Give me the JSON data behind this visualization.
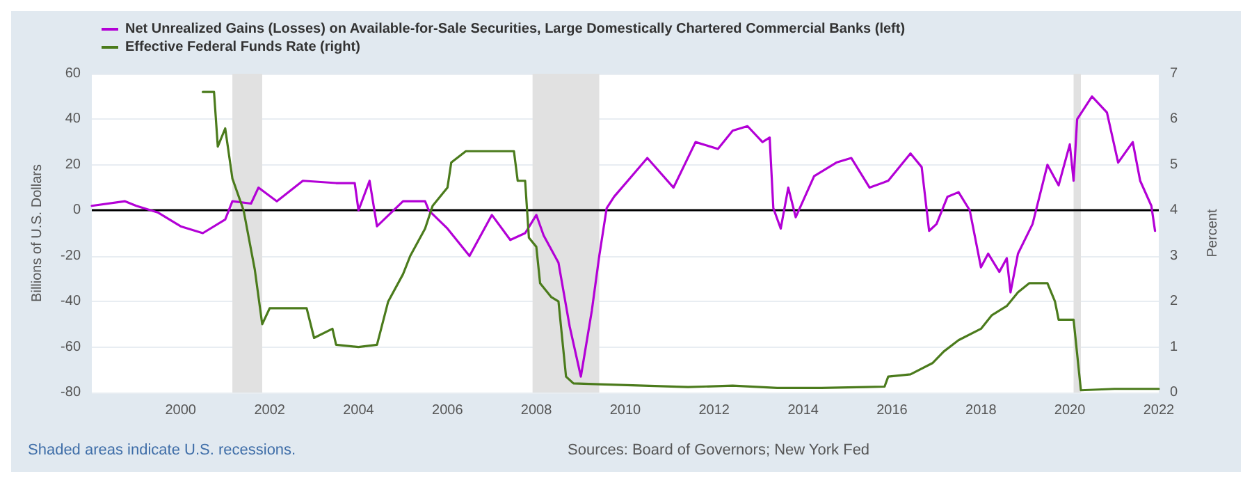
{
  "chart_data": {
    "type": "line",
    "legend": "top left",
    "grid": "y",
    "marker": "none",
    "line_style": "solid",
    "ylabel": "Billions of U.S. Dollars",
    "y2label": "Percent",
    "xlim": [
      "1998-01",
      "2022-01"
    ],
    "xticks": [
      "2000",
      "2002",
      "2004",
      "2006",
      "2008",
      "2010",
      "2012",
      "2014",
      "2016",
      "2018",
      "2020",
      "2022"
    ],
    "ylim": [
      -80,
      60
    ],
    "yticks": [
      -80,
      -60,
      -40,
      -20,
      0,
      20,
      40,
      60
    ],
    "y2lim": [
      0,
      7
    ],
    "y2ticks": [
      0,
      1,
      2,
      3,
      4,
      5,
      6,
      7
    ],
    "ref_lines": [
      {
        "axis": "y",
        "value": 0,
        "color": "#000000"
      }
    ],
    "bands": [
      {
        "axis": "x",
        "from": "2001-03",
        "to": "2001-11",
        "color": "#e1e1e1"
      },
      {
        "axis": "x",
        "from": "2007-12",
        "to": "2009-06",
        "color": "#e1e1e1"
      },
      {
        "axis": "x",
        "from": "2020-02",
        "to": "2020-04",
        "color": "#e1e1e1"
      }
    ],
    "annotations": [
      "Shaded areas indicate U.S. recessions.",
      "Sources: Board of Governors; New York Fed"
    ],
    "series": [
      {
        "name": "Net Unrealized Gains (Losses) on Available-for-Sale Securities, Large Domestically Chartered Commercial Banks (left)",
        "color": "#b300d6",
        "x": [
          "1998-01",
          "1998-10",
          "1999-01",
          "1999-07",
          "2000-01",
          "2000-07",
          "2001-01",
          "2001-03",
          "2001-08",
          "2001-10",
          "2002-03",
          "2002-10",
          "2003-07",
          "2003-12",
          "2004-01",
          "2004-04",
          "2004-06",
          "2005-01",
          "2005-07",
          "2005-08",
          "2006-01",
          "2006-07",
          "2007-01",
          "2007-06",
          "2007-10",
          "2008-01",
          "2008-03",
          "2008-07",
          "2008-10",
          "2009-01",
          "2009-02",
          "2009-04",
          "2009-06",
          "2009-08",
          "2009-10",
          "2010-07",
          "2011-02",
          "2011-08",
          "2012-02",
          "2012-06",
          "2012-10",
          "2013-02",
          "2013-04",
          "2013-05",
          "2013-07",
          "2013-09",
          "2013-11",
          "2014-04",
          "2014-10",
          "2015-02",
          "2015-07",
          "2015-12",
          "2016-06",
          "2016-09",
          "2016-11",
          "2017-01",
          "2017-04",
          "2017-07",
          "2017-10",
          "2018-01",
          "2018-03",
          "2018-06",
          "2018-08",
          "2018-09",
          "2018-11",
          "2019-03",
          "2019-07",
          "2019-10",
          "2020-01",
          "2020-02",
          "2020-03",
          "2020-07",
          "2020-11",
          "2021-02",
          "2021-06",
          "2021-08",
          "2021-11",
          "2021-12"
        ],
        "values": [
          2,
          4,
          2,
          -1,
          -7,
          -10,
          -4,
          4,
          3,
          10,
          4,
          13,
          12,
          12,
          0,
          13,
          -7,
          4,
          4,
          0,
          -8,
          -20,
          -2,
          -13,
          -10,
          -2,
          -11,
          -23,
          -51,
          -73,
          -63,
          -44,
          -20,
          1,
          6,
          23,
          10,
          30,
          27,
          35,
          37,
          30,
          32,
          1,
          -8,
          10,
          -3,
          15,
          21,
          23,
          10,
          13,
          25,
          19,
          -9,
          -6,
          6,
          8,
          0,
          -25,
          -19,
          -27,
          -21,
          -36,
          -19,
          -6,
          20,
          11,
          29,
          13,
          40,
          50,
          43,
          21,
          30,
          13,
          2,
          -9
        ]
      },
      {
        "name": "Effective Federal Funds Rate (right)",
        "color": "#4b7b1c",
        "axis": "y2",
        "x": [
          "2000-07",
          "2000-10",
          "2000-11",
          "2001-01",
          "2001-03",
          "2001-06",
          "2001-09",
          "2001-11",
          "2002-01",
          "2002-11",
          "2003-01",
          "2003-06",
          "2003-07",
          "2004-01",
          "2004-06",
          "2004-09",
          "2005-01",
          "2005-03",
          "2005-07",
          "2005-09",
          "2006-01",
          "2006-02",
          "2006-06",
          "2007-07",
          "2007-08",
          "2007-10",
          "2007-11",
          "2008-01",
          "2008-02",
          "2008-05",
          "2008-07",
          "2008-09",
          "2008-11",
          "2009-06",
          "2010-06",
          "2011-06",
          "2012-06",
          "2013-06",
          "2014-06",
          "2015-06",
          "2015-11",
          "2015-12",
          "2016-06",
          "2016-12",
          "2017-03",
          "2017-07",
          "2018-01",
          "2018-04",
          "2018-08",
          "2018-11",
          "2019-02",
          "2019-07",
          "2019-09",
          "2019-10",
          "2020-02",
          "2020-04",
          "2021-01",
          "2022-01"
        ],
        "values": [
          6.6,
          6.6,
          5.4,
          5.8,
          4.7,
          4.0,
          2.7,
          1.5,
          1.85,
          1.85,
          1.2,
          1.4,
          1.05,
          1.0,
          1.05,
          2.0,
          2.6,
          3.0,
          3.6,
          4.1,
          4.5,
          5.05,
          5.3,
          5.3,
          4.65,
          4.65,
          3.4,
          3.2,
          2.4,
          2.1,
          2.0,
          0.35,
          0.2,
          0.18,
          0.15,
          0.12,
          0.15,
          0.1,
          0.1,
          0.12,
          0.13,
          0.35,
          0.4,
          0.65,
          0.9,
          1.15,
          1.4,
          1.7,
          1.9,
          2.2,
          2.4,
          2.4,
          2.0,
          1.6,
          1.6,
          0.05,
          0.08,
          0.08
        ]
      }
    ]
  }
}
